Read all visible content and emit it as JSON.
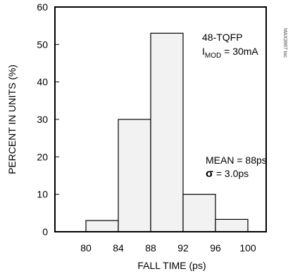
{
  "chart_data": {
    "type": "bar",
    "bins": [
      {
        "from": 80,
        "to": 84,
        "value": 3
      },
      {
        "from": 84,
        "to": 88,
        "value": 30
      },
      {
        "from": 88,
        "to": 92,
        "value": 53
      },
      {
        "from": 92,
        "to": 96,
        "value": 10
      },
      {
        "from": 96,
        "to": 100,
        "value": 3.3
      }
    ],
    "xlabel": "FALL TIME (ps)",
    "ylabel": "PERCENT IN UNITS (%)",
    "xticks": [
      "80",
      "84",
      "88",
      "92",
      "96",
      "100"
    ],
    "yticks": [
      "0",
      "10",
      "20",
      "30",
      "40",
      "50",
      "60"
    ],
    "xlim": [
      76,
      103
    ],
    "ylim": [
      0,
      60
    ],
    "grid": false,
    "bar_fill": "#f2f2f2",
    "annotations": {
      "package": "48-TQFP",
      "imod_symbol": "I",
      "imod_sub": "MOD",
      "imod_value": " = 30mA",
      "mean": "MEAN = 88ps",
      "sigma_symbol": "σ",
      "sigma_value": " = 3.0ps"
    },
    "side_id": "MAX3967 toc"
  }
}
